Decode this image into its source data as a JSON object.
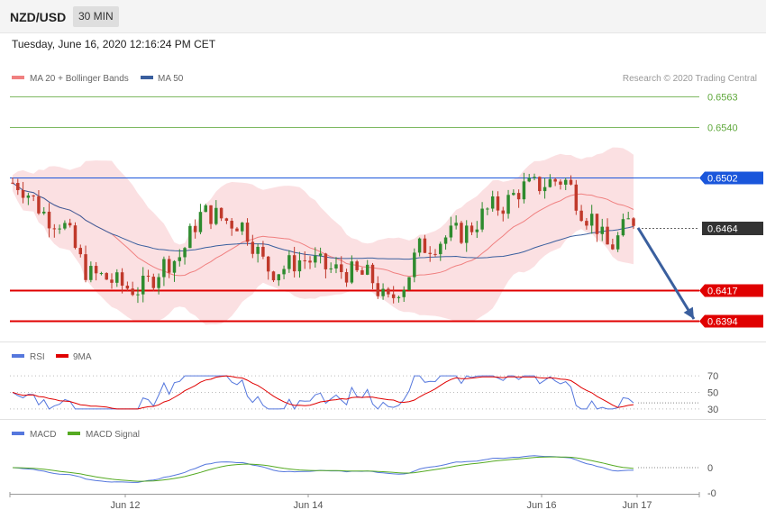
{
  "header": {
    "symbol": "NZD/USD",
    "timeframe": "30 MIN",
    "datetime": "Tuesday, June 16, 2020 12:16:24 PM CET"
  },
  "credit": "Research © 2020 Trading Central",
  "colors": {
    "bullish": "#2e8b2e",
    "bearish": "#c0392b",
    "bands": "#fadadd",
    "ma20": "#f08080",
    "ma50": "#3a5f9e",
    "rsi": "#5577dd",
    "rsi_ma": "#e00000",
    "macd": "#5577dd",
    "macd_signal": "#55aa22",
    "arrow": "#3a5f9e"
  },
  "chart_data": [
    {
      "type": "candlestick",
      "legend": [
        {
          "name": "MA 20 + Bollinger Bands",
          "color": "#f08080"
        },
        {
          "name": "MA 50",
          "color": "#3a5f9e"
        }
      ],
      "x_labels": [
        "Jun 12",
        "Jun 14",
        "Jun 16",
        "Jun 17"
      ],
      "price_range": [
        0.6378,
        0.6574
      ],
      "levels": [
        {
          "value": 0.6563,
          "label": "0.6563",
          "color": "#5fa83c",
          "style": "line"
        },
        {
          "value": 0.654,
          "label": "0.6540",
          "color": "#5fa83c",
          "style": "line"
        },
        {
          "value": 0.6502,
          "label": "0.6502",
          "color": "#1a56db",
          "style": "box"
        },
        {
          "value": 0.6464,
          "label": "0.6464",
          "color": "#333333",
          "style": "current"
        },
        {
          "value": 0.6417,
          "label": "0.6417",
          "color": "#e00000",
          "style": "box"
        },
        {
          "value": 0.6394,
          "label": "0.6394",
          "color": "#e00000",
          "style": "box"
        }
      ],
      "forecast_arrow": {
        "from_price": 0.6464,
        "to_price": 0.6394
      }
    },
    {
      "type": "line",
      "panel": "RSI",
      "legend": [
        {
          "name": "RSI",
          "color": "#5577dd"
        },
        {
          "name": "9MA",
          "color": "#e00000"
        }
      ],
      "ticks": [
        {
          "value": 70,
          "label": "70"
        },
        {
          "value": 50,
          "label": "50"
        },
        {
          "value": 30,
          "label": "30"
        }
      ]
    },
    {
      "type": "line",
      "panel": "MACD",
      "legend": [
        {
          "name": "MACD",
          "color": "#5577dd"
        },
        {
          "name": "MACD Signal",
          "color": "#55aa22"
        }
      ],
      "ticks": [
        {
          "value": 0,
          "label": "0"
        },
        {
          "value": -1,
          "label": "-0"
        }
      ]
    }
  ]
}
